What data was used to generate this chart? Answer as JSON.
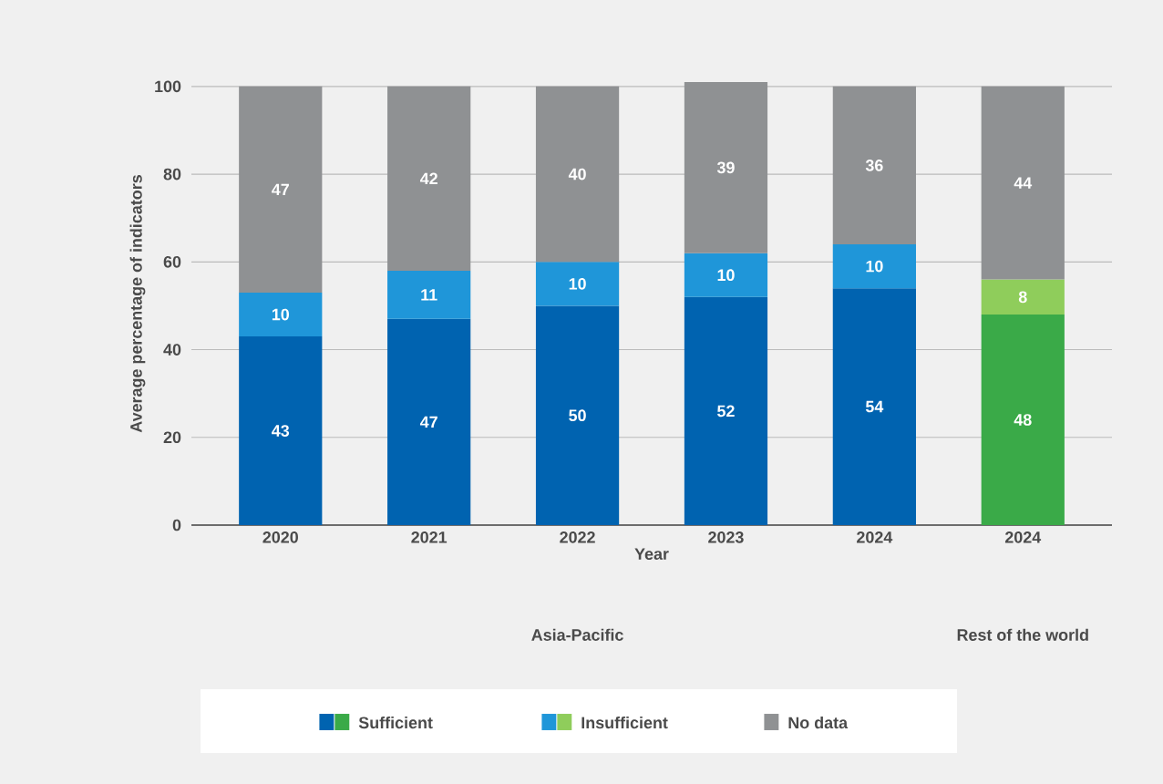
{
  "chart_data": {
    "type": "bar",
    "stacked": true,
    "xlabel": "Year",
    "ylabel": "Average percentage of indicators",
    "categories": [
      "2020",
      "2021",
      "2022",
      "2023",
      "2024",
      "2024"
    ],
    "series": [
      {
        "name": "Sufficient",
        "colors": [
          "#0063b0",
          "#0063b0",
          "#0063b0",
          "#0063b0",
          "#0063b0",
          "#3aaa48"
        ],
        "values": [
          43,
          47,
          50,
          52,
          54,
          48
        ]
      },
      {
        "name": "Insufficient",
        "colors": [
          "#1f96d9",
          "#1f96d9",
          "#1f96d9",
          "#1f96d9",
          "#1f96d9",
          "#8fcd5b"
        ],
        "values": [
          10,
          11,
          10,
          10,
          10,
          8
        ]
      },
      {
        "name": "No data",
        "colors": [
          "#8f9193",
          "#8f9193",
          "#8f9193",
          "#8f9193",
          "#8f9193",
          "#8f9193"
        ],
        "values": [
          47,
          42,
          40,
          39,
          36,
          44
        ]
      }
    ],
    "ylim": [
      0,
      101
    ],
    "yticks": [
      0,
      20,
      40,
      60,
      80,
      100
    ],
    "grid": "y",
    "data_labels": true,
    "legend": "bottom",
    "annotations": [
      "Asia-Pacific",
      "Rest of the world"
    ]
  }
}
